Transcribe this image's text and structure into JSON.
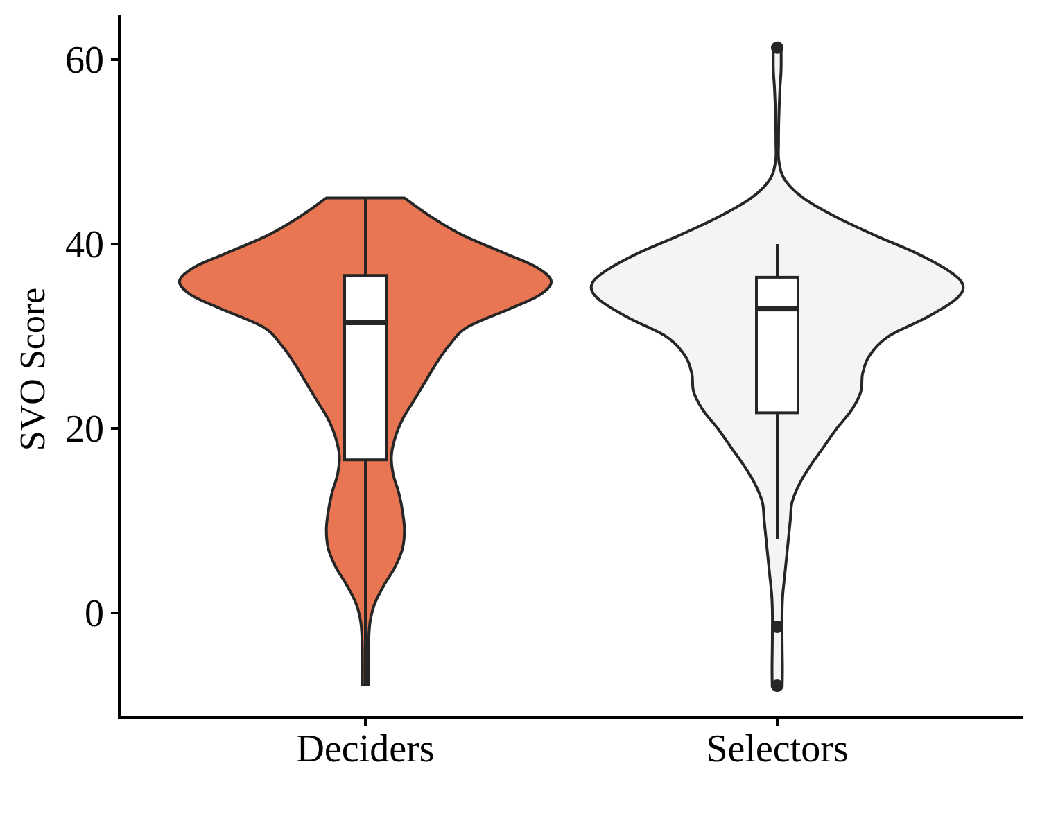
{
  "chart_data": {
    "type": "violin",
    "title": "",
    "xlabel": "",
    "ylabel": "SVO Score",
    "ylim": [
      -11.3,
      65
    ],
    "yticks": [
      0,
      20,
      40,
      60
    ],
    "grid": false,
    "legend": "none",
    "categories": [
      "Deciders",
      "Selectors"
    ],
    "groups": [
      {
        "category": "Deciders",
        "fill": "#E87653",
        "range": [
          -7.8,
          45
        ],
        "box": {
          "lower_whisker": -7.8,
          "q1": 16.6,
          "median": 31.5,
          "q3": 36.6,
          "upper_whisker": 45
        },
        "outliers": [],
        "density": [
          [
            45.0,
            0.21
          ],
          [
            43.0,
            0.35
          ],
          [
            41.0,
            0.52
          ],
          [
            39.0,
            0.75
          ],
          [
            37.5,
            0.92
          ],
          [
            36.0,
            1.0
          ],
          [
            34.5,
            0.94
          ],
          [
            33.0,
            0.78
          ],
          [
            31.0,
            0.55
          ],
          [
            29.0,
            0.45
          ],
          [
            27.0,
            0.38
          ],
          [
            25.0,
            0.32
          ],
          [
            23.0,
            0.26
          ],
          [
            21.0,
            0.2
          ],
          [
            19.0,
            0.16
          ],
          [
            17.0,
            0.14
          ],
          [
            15.0,
            0.15
          ],
          [
            13.0,
            0.18
          ],
          [
            11.0,
            0.2
          ],
          [
            9.0,
            0.21
          ],
          [
            7.0,
            0.2
          ],
          [
            5.0,
            0.16
          ],
          [
            3.0,
            0.1
          ],
          [
            1.0,
            0.05
          ],
          [
            -1.0,
            0.025
          ],
          [
            -3.0,
            0.018
          ],
          [
            -5.0,
            0.016
          ],
          [
            -7.8,
            0.016
          ]
        ]
      },
      {
        "category": "Selectors",
        "fill": "#F4F4F4",
        "range": [
          -8.0,
          61.3
        ],
        "box": {
          "lower_whisker": 8.0,
          "q1": 21.7,
          "median": 33.0,
          "q3": 36.4,
          "upper_whisker": 40.0
        },
        "outliers": [
          61.3,
          -1.5,
          -7.9
        ],
        "density": [
          [
            61.3,
            0.021
          ],
          [
            59.0,
            0.021
          ],
          [
            57.0,
            0.015
          ],
          [
            55.0,
            0.011
          ],
          [
            53.0,
            0.008
          ],
          [
            51.0,
            0.007
          ],
          [
            49.0,
            0.009
          ],
          [
            47.0,
            0.04
          ],
          [
            45.0,
            0.14
          ],
          [
            43.0,
            0.31
          ],
          [
            41.0,
            0.52
          ],
          [
            39.0,
            0.75
          ],
          [
            37.0,
            0.93
          ],
          [
            35.5,
            1.0
          ],
          [
            34.0,
            0.96
          ],
          [
            32.0,
            0.8
          ],
          [
            30.0,
            0.6
          ],
          [
            28.0,
            0.5
          ],
          [
            26.0,
            0.46
          ],
          [
            24.0,
            0.45
          ],
          [
            22.0,
            0.4
          ],
          [
            20.0,
            0.32
          ],
          [
            18.0,
            0.25
          ],
          [
            16.0,
            0.18
          ],
          [
            14.0,
            0.12
          ],
          [
            12.0,
            0.08
          ],
          [
            10.0,
            0.07
          ],
          [
            8.0,
            0.06
          ],
          [
            6.0,
            0.05
          ],
          [
            4.0,
            0.04
          ],
          [
            2.0,
            0.03
          ],
          [
            0.0,
            0.026
          ],
          [
            -2.0,
            0.026
          ],
          [
            -4.0,
            0.027
          ],
          [
            -6.0,
            0.028
          ],
          [
            -8.0,
            0.027
          ]
        ]
      }
    ]
  }
}
